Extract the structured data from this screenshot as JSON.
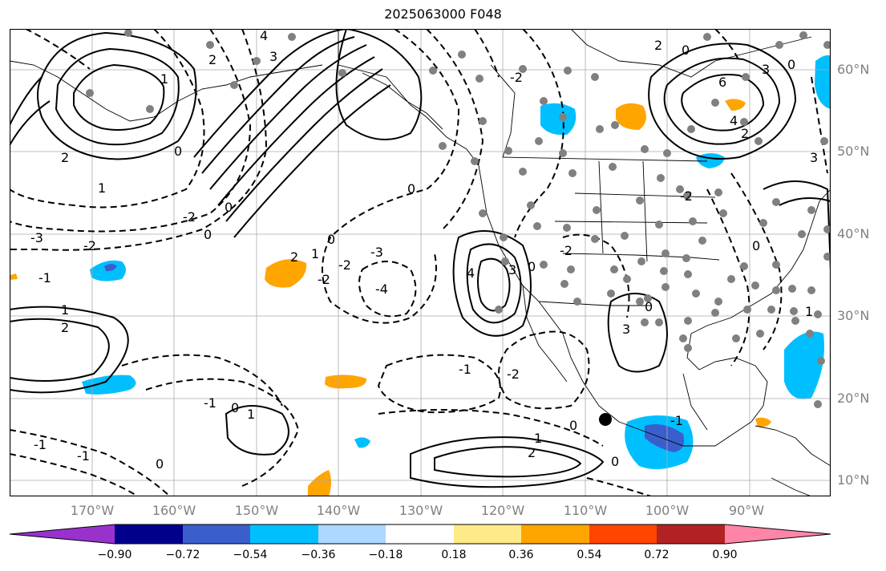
{
  "title": "2025063000 F048",
  "lat_labels": [
    "60°N",
    "50°N",
    "40°N",
    "30°N",
    "20°N",
    "10°N"
  ],
  "lon_labels": [
    "170°W",
    "160°W",
    "150°W",
    "140°W",
    "130°W",
    "120°W",
    "110°W",
    "100°W",
    "90°W"
  ],
  "contour_labels": [
    "4",
    "3",
    "2",
    "1",
    "0",
    "-1",
    "-2",
    "-3",
    "-4",
    "6"
  ],
  "colorbar": {
    "ticks": [
      "−0.90",
      "−0.72",
      "−0.54",
      "−0.36",
      "−0.18",
      "0.18",
      "0.36",
      "0.54",
      "0.72",
      "0.90"
    ],
    "colors": [
      "#9932cc",
      "#00008b",
      "#3a5fcd",
      "#00bfff",
      "#add8ff",
      "#ffffff",
      "#ffea8a",
      "#ffa500",
      "#ff4500",
      "#b22222",
      "#ff85a8"
    ]
  }
}
